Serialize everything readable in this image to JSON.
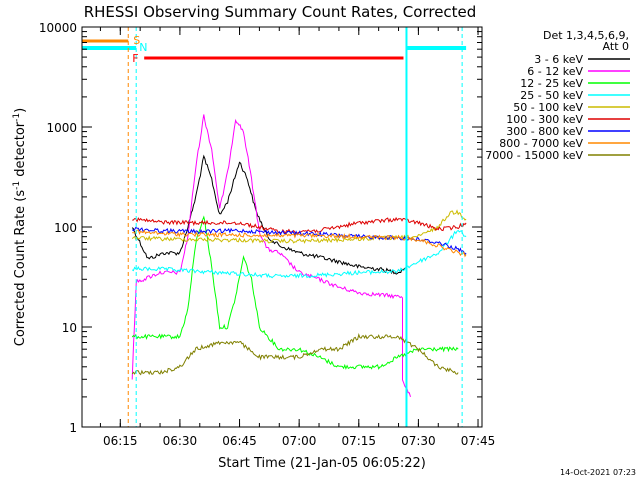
{
  "chart_data": {
    "type": "line",
    "title": "RHESSI Observing Summary Count Rates, Corrected",
    "xlabel": "Start Time (21-Jan-05 06:05:22)",
    "ylabel": "Corrected Count Rate (s⁻¹ detector⁻¹)",
    "ylabel_main": "Corrected Count Rate (s",
    "ylabel_sup1": "-1",
    "ylabel_mid": " detector",
    "ylabel_sup2": "-1",
    "ylabel_end": ")",
    "yscale": "log",
    "xlim": [
      "06:05:22",
      "07:46:00"
    ],
    "ylim": [
      1,
      10000
    ],
    "x_ticks": [
      "06:15",
      "06:30",
      "06:45",
      "07:00",
      "07:15",
      "07:30",
      "07:45"
    ],
    "y_ticks": [
      "1",
      "10",
      "100",
      "1000",
      "10000"
    ],
    "legend_header": [
      "Det 1,3,4,5,6,9,",
      "Att 0"
    ],
    "legend_position": "right",
    "timestamp": "14-Oct-2021 07:23",
    "series": [
      {
        "name": "3 - 6 keV",
        "color": "#000000",
        "points": [
          [
            "06:18",
            100
          ],
          [
            "06:22",
            48
          ],
          [
            "06:26",
            55
          ],
          [
            "06:30",
            55
          ],
          [
            "06:32",
            100
          ],
          [
            "06:34",
            200
          ],
          [
            "06:36",
            500
          ],
          [
            "06:38",
            300
          ],
          [
            "06:40",
            130
          ],
          [
            "06:42",
            180
          ],
          [
            "06:45",
            450
          ],
          [
            "06:47",
            300
          ],
          [
            "06:49",
            150
          ],
          [
            "06:52",
            80
          ],
          [
            "06:55",
            65
          ],
          [
            "07:00",
            55
          ],
          [
            "07:05",
            50
          ],
          [
            "07:10",
            45
          ],
          [
            "07:15",
            40
          ],
          [
            "07:20",
            38
          ],
          [
            "07:25",
            35
          ],
          [
            "07:27",
            40
          ]
        ]
      },
      {
        "name": "6 - 12 keV",
        "color": "#ff00ff",
        "points": [
          [
            "06:18",
            3
          ],
          [
            "06:19",
            28
          ],
          [
            "06:25",
            35
          ],
          [
            "06:30",
            35
          ],
          [
            "06:32",
            80
          ],
          [
            "06:34",
            400
          ],
          [
            "06:36",
            1300
          ],
          [
            "06:38",
            600
          ],
          [
            "06:40",
            150
          ],
          [
            "06:42",
            350
          ],
          [
            "06:44",
            1200
          ],
          [
            "06:46",
            900
          ],
          [
            "06:48",
            300
          ],
          [
            "06:50",
            90
          ],
          [
            "06:52",
            60
          ],
          [
            "06:55",
            55
          ],
          [
            "07:00",
            35
          ],
          [
            "07:05",
            30
          ],
          [
            "07:10",
            25
          ],
          [
            "07:15",
            22
          ],
          [
            "07:20",
            21
          ],
          [
            "07:26",
            20
          ],
          [
            "07:26",
            3
          ],
          [
            "07:28",
            2
          ]
        ]
      },
      {
        "name": "12 - 25 keV",
        "color": "#00ff00",
        "points": [
          [
            "06:18",
            8
          ],
          [
            "06:24",
            8
          ],
          [
            "06:30",
            8
          ],
          [
            "06:32",
            15
          ],
          [
            "06:34",
            70
          ],
          [
            "06:36",
            130
          ],
          [
            "06:38",
            40
          ],
          [
            "06:40",
            10
          ],
          [
            "06:42",
            10
          ],
          [
            "06:44",
            20
          ],
          [
            "06:46",
            50
          ],
          [
            "06:48",
            30
          ],
          [
            "06:50",
            10
          ],
          [
            "06:55",
            6
          ],
          [
            "07:00",
            6
          ],
          [
            "07:05",
            5
          ],
          [
            "07:10",
            4
          ],
          [
            "07:15",
            4
          ],
          [
            "07:20",
            4
          ],
          [
            "07:25",
            5
          ],
          [
            "07:30",
            6
          ],
          [
            "07:40",
            6
          ]
        ]
      },
      {
        "name": "25 - 50 keV",
        "color": "#00ffff",
        "points": [
          [
            "06:18",
            38
          ],
          [
            "06:25",
            38
          ],
          [
            "06:35",
            36
          ],
          [
            "06:45",
            34
          ],
          [
            "06:55",
            32
          ],
          [
            "07:05",
            33
          ],
          [
            "07:15",
            35
          ],
          [
            "07:25",
            36
          ],
          [
            "07:30",
            45
          ],
          [
            "07:35",
            55
          ],
          [
            "07:38",
            75
          ],
          [
            "07:40",
            95
          ],
          [
            "07:42",
            80
          ]
        ]
      },
      {
        "name": "50 - 100 keV",
        "color": "#ccbb00",
        "points": [
          [
            "06:18",
            78
          ],
          [
            "06:25",
            76
          ],
          [
            "06:35",
            75
          ],
          [
            "06:45",
            74
          ],
          [
            "06:55",
            72
          ],
          [
            "07:05",
            73
          ],
          [
            "07:15",
            76
          ],
          [
            "07:25",
            78
          ],
          [
            "07:30",
            80
          ],
          [
            "07:35",
            100
          ],
          [
            "07:38",
            140
          ],
          [
            "07:40",
            140
          ],
          [
            "07:42",
            120
          ]
        ]
      },
      {
        "name": "100 - 300 keV",
        "color": "#dd0000",
        "points": [
          [
            "06:18",
            120
          ],
          [
            "06:25",
            112
          ],
          [
            "06:35",
            110
          ],
          [
            "06:45",
            110
          ],
          [
            "06:55",
            90
          ],
          [
            "07:05",
            92
          ],
          [
            "07:15",
            110
          ],
          [
            "07:25",
            120
          ],
          [
            "07:30",
            110
          ],
          [
            "07:35",
            95
          ],
          [
            "07:40",
            100
          ],
          [
            "07:42",
            110
          ]
        ]
      },
      {
        "name": "300 - 800 keV",
        "color": "#0000ff",
        "points": [
          [
            "06:18",
            96
          ],
          [
            "06:25",
            92
          ],
          [
            "06:35",
            90
          ],
          [
            "06:45",
            92
          ],
          [
            "06:55",
            88
          ],
          [
            "07:05",
            85
          ],
          [
            "07:15",
            80
          ],
          [
            "07:25",
            78
          ],
          [
            "07:30",
            75
          ],
          [
            "07:35",
            70
          ],
          [
            "07:40",
            60
          ],
          [
            "07:42",
            55
          ]
        ]
      },
      {
        "name": "800 - 7000 keV",
        "color": "#ff8800",
        "points": [
          [
            "06:18",
            90
          ],
          [
            "06:25",
            86
          ],
          [
            "06:35",
            84
          ],
          [
            "06:45",
            83
          ],
          [
            "06:55",
            82
          ],
          [
            "07:05",
            82
          ],
          [
            "07:15",
            80
          ],
          [
            "07:25",
            78
          ],
          [
            "07:30",
            75
          ],
          [
            "07:35",
            65
          ],
          [
            "07:40",
            55
          ],
          [
            "07:42",
            53
          ]
        ]
      },
      {
        "name": "7000 - 15000 keV",
        "color": "#808000",
        "points": [
          [
            "06:18",
            3.5
          ],
          [
            "06:25",
            3.5
          ],
          [
            "06:30",
            4
          ],
          [
            "06:34",
            6
          ],
          [
            "06:40",
            7
          ],
          [
            "06:45",
            7
          ],
          [
            "06:50",
            5
          ],
          [
            "06:55",
            5
          ],
          [
            "07:00",
            5
          ],
          [
            "07:05",
            6
          ],
          [
            "07:10",
            6
          ],
          [
            "07:15",
            8
          ],
          [
            "07:20",
            8
          ],
          [
            "07:25",
            8
          ],
          [
            "07:30",
            6
          ],
          [
            "07:35",
            4
          ],
          [
            "07:40",
            3.5
          ]
        ]
      }
    ],
    "markers": {
      "s_label": "S",
      "n_label": "N",
      "f_label": "F",
      "s_color": "#ff8800",
      "n_color": "#00ffff",
      "f_color": "#ff0000",
      "orange_dashed": "06:17",
      "cyan_dashed": [
        "06:19",
        "07:41"
      ],
      "cyan_solid": "07:27",
      "flare_start": "06:19",
      "flare_end": "07:27",
      "orange_bar_end": "06:17",
      "night_ranges": [
        [
          "06:05:22",
          "06:19"
        ],
        [
          "07:27",
          "07:42"
        ]
      ]
    }
  }
}
